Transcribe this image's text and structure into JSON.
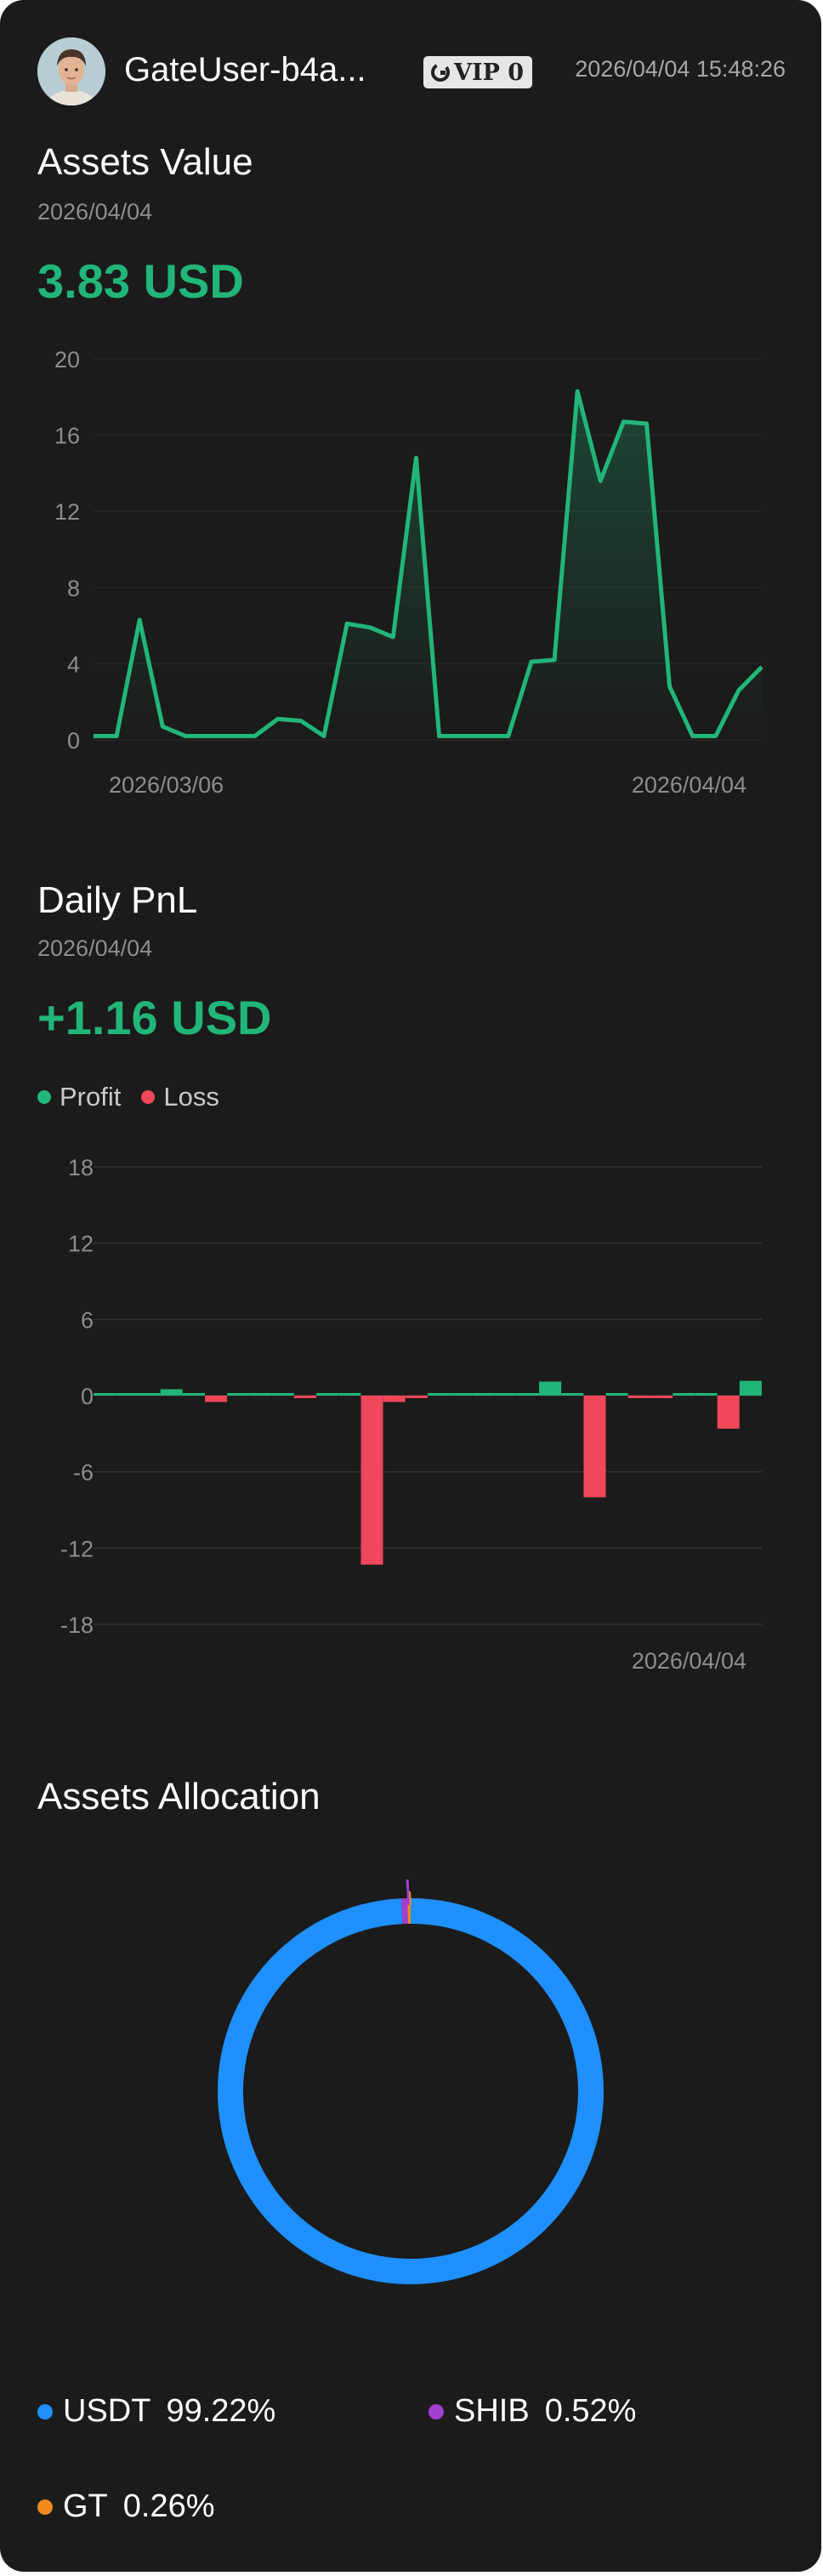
{
  "header": {
    "username": "GateUser-b4a...",
    "vip_label": "VIP 0",
    "timestamp": "2026/04/04 15:48:26"
  },
  "assets_value": {
    "title": "Assets Value",
    "date": "2026/04/04",
    "value": "3.83 USD"
  },
  "daily_pnl": {
    "title": "Daily PnL",
    "date": "2026/04/04",
    "value": "+1.16 USD",
    "legend": {
      "profit": "Profit",
      "loss": "Loss"
    }
  },
  "allocation": {
    "title": "Assets Allocation",
    "items": [
      {
        "name": "USDT",
        "percent": "99.22%",
        "color": "#1e90ff"
      },
      {
        "name": "SHIB",
        "percent": "0.52%",
        "color": "#a23fd1"
      },
      {
        "name": "GT",
        "percent": "0.26%",
        "color": "#f08a1e"
      }
    ]
  },
  "colors": {
    "accent_green": "#22b57a",
    "loss_red": "#f0475b",
    "usdt_blue": "#1e90ff"
  },
  "chart_data": [
    {
      "type": "area",
      "title": "Assets Value",
      "ylim": [
        0,
        20
      ],
      "yticks": [
        0,
        4,
        8,
        12,
        16,
        20
      ],
      "x_tick_labels": [
        "2026/03/06",
        "2026/04/04"
      ],
      "x_start": "2026/03/06",
      "x_end": "2026/04/04",
      "grid": true,
      "series": [
        {
          "values": [
            0.2,
            0.2,
            6.3,
            0.7,
            0.2,
            0.2,
            0.2,
            0.2,
            1.1,
            1.0,
            0.2,
            6.1,
            5.9,
            5.4,
            14.8,
            0.2,
            0.2,
            0.2,
            0.2,
            4.1,
            4.2,
            18.3,
            13.6,
            16.7,
            16.6,
            2.8,
            0.2,
            0.2,
            2.6,
            3.83
          ]
        }
      ]
    },
    {
      "type": "bar",
      "title": "Daily PnL",
      "ylim": [
        -18,
        18
      ],
      "yticks": [
        18,
        12,
        6,
        0,
        -6,
        -12,
        -18
      ],
      "x_tick_labels": [
        "2026/04/04"
      ],
      "grid": true,
      "values": [
        0,
        0,
        0,
        0.5,
        0,
        -0.5,
        0,
        0,
        0,
        -0.1,
        0,
        0,
        -13.3,
        -0.5,
        -0.2,
        0.1,
        0,
        0,
        0,
        0,
        1.1,
        0,
        -8.0,
        0,
        -0.2,
        -0.1,
        0,
        0,
        -2.6,
        1.16
      ]
    },
    {
      "type": "pie",
      "title": "Assets Allocation",
      "labels": [
        "USDT",
        "SHIB",
        "GT"
      ],
      "values": [
        99.22,
        0.52,
        0.26
      ]
    }
  ]
}
